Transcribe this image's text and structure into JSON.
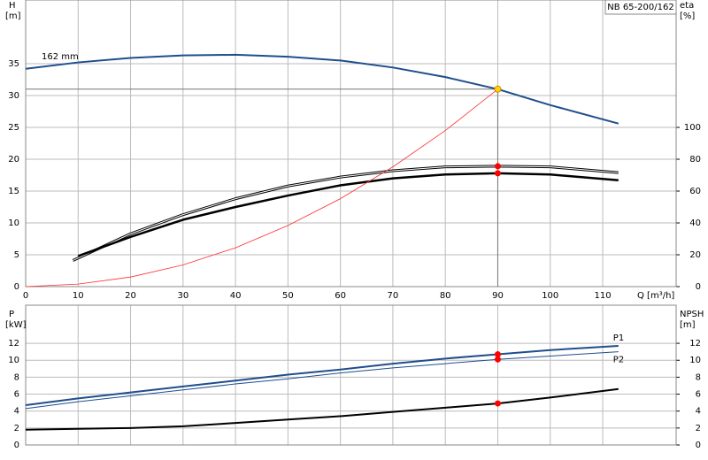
{
  "chart_data": [
    {
      "type": "line",
      "box_label": "NB 65-200/162",
      "x_label": "Q [m³/h]",
      "y_label": "H",
      "y_unit": "[m]",
      "y2_label": "eta",
      "y2_unit": "[%]",
      "xlim": [
        0,
        124
      ],
      "xticks": [
        0,
        10,
        20,
        30,
        40,
        50,
        60,
        70,
        80,
        90,
        100,
        110
      ],
      "ylim": [
        0,
        45
      ],
      "yticks": [
        0,
        5,
        10,
        15,
        20,
        25,
        30,
        35
      ],
      "y2lim": [
        0,
        180
      ],
      "y2ticks": [
        0,
        20,
        40,
        60,
        80,
        100
      ],
      "grid": true,
      "guide": {
        "x": 90,
        "y": 31
      },
      "series": [
        {
          "name": "162 mm",
          "color": "#1f4e8c",
          "width": 2,
          "x": [
            0,
            10,
            20,
            30,
            40,
            50,
            60,
            70,
            80,
            90,
            100,
            113
          ],
          "values": [
            34.2,
            35.2,
            35.9,
            36.3,
            36.4,
            36.1,
            35.5,
            34.4,
            32.9,
            31.0,
            28.5,
            25.6
          ]
        },
        {
          "color": "#000000",
          "width": 3,
          "style": "double",
          "axis": "y2",
          "x": [
            9,
            20,
            30,
            40,
            50,
            60,
            70,
            80,
            90,
            100,
            113
          ],
          "values": [
            16.4,
            33.2,
            45.2,
            55.2,
            63.2,
            68.8,
            72.8,
            75.2,
            75.6,
            75.2,
            71.6
          ]
        },
        {
          "color": "#000000",
          "width": 2.5,
          "axis": "y2",
          "x": [
            10,
            20,
            30,
            40,
            50,
            60,
            70,
            80,
            90,
            100,
            113
          ],
          "values": [
            19.2,
            31.2,
            42,
            50,
            57.2,
            63.6,
            68,
            70.4,
            71.2,
            70.4,
            66.8
          ]
        },
        {
          "color": "#ff3030",
          "width": 0.8,
          "x": [
            0,
            10,
            20,
            30,
            40,
            50,
            60,
            70,
            80,
            90
          ],
          "values": [
            0,
            0.4,
            1.5,
            3.4,
            6.1,
            9.6,
            13.8,
            18.8,
            24.5,
            31.0
          ]
        },
        {
          "type": "scatter",
          "color": "#ffd700",
          "x": [
            90
          ],
          "values": [
            31.0
          ]
        },
        {
          "type": "scatter",
          "color": "#ff0000",
          "axis": "y2",
          "x": [
            90,
            90
          ],
          "values": [
            75.6,
            71.2
          ]
        }
      ]
    },
    {
      "type": "line",
      "y_label": "P",
      "y_unit": "[kW]",
      "y2_label": "NPSH",
      "y2_unit": "[m]",
      "xlim": [
        0,
        124
      ],
      "ylim": [
        0,
        16.5
      ],
      "yticks": [
        0,
        2,
        4,
        6,
        8,
        10,
        12
      ],
      "y2lim": [
        0,
        16.5
      ],
      "y2ticks": [
        0,
        2,
        4,
        6,
        8,
        10,
        12
      ],
      "grid": true,
      "series": [
        {
          "name": "P1",
          "color": "#1f4e8c",
          "width": 2,
          "x": [
            0,
            10,
            20,
            30,
            40,
            50,
            60,
            70,
            80,
            90,
            100,
            113
          ],
          "values": [
            4.7,
            5.5,
            6.2,
            6.9,
            7.6,
            8.3,
            8.9,
            9.6,
            10.2,
            10.7,
            11.2,
            11.7
          ]
        },
        {
          "name": "P2",
          "color": "#1f4e8c",
          "width": 1,
          "x": [
            0,
            10,
            20,
            30,
            40,
            50,
            60,
            70,
            80,
            90,
            100,
            113
          ],
          "values": [
            4.3,
            5.1,
            5.8,
            6.5,
            7.2,
            7.8,
            8.5,
            9.1,
            9.6,
            10.1,
            10.5,
            11.0
          ]
        },
        {
          "color": "#000000",
          "width": 2,
          "axis": "y2",
          "x": [
            0,
            10,
            20,
            30,
            40,
            50,
            60,
            70,
            80,
            90,
            100,
            113
          ],
          "values": [
            1.8,
            1.9,
            2.0,
            2.2,
            2.6,
            3.0,
            3.4,
            3.9,
            4.4,
            4.9,
            5.6,
            6.6
          ]
        },
        {
          "type": "scatter",
          "color": "#ff0000",
          "x": [
            90,
            90
          ],
          "values": [
            10.7,
            10.1
          ]
        },
        {
          "type": "scatter",
          "color": "#ff0000",
          "axis": "y2",
          "x": [
            90
          ],
          "values": [
            4.9
          ]
        }
      ]
    }
  ]
}
